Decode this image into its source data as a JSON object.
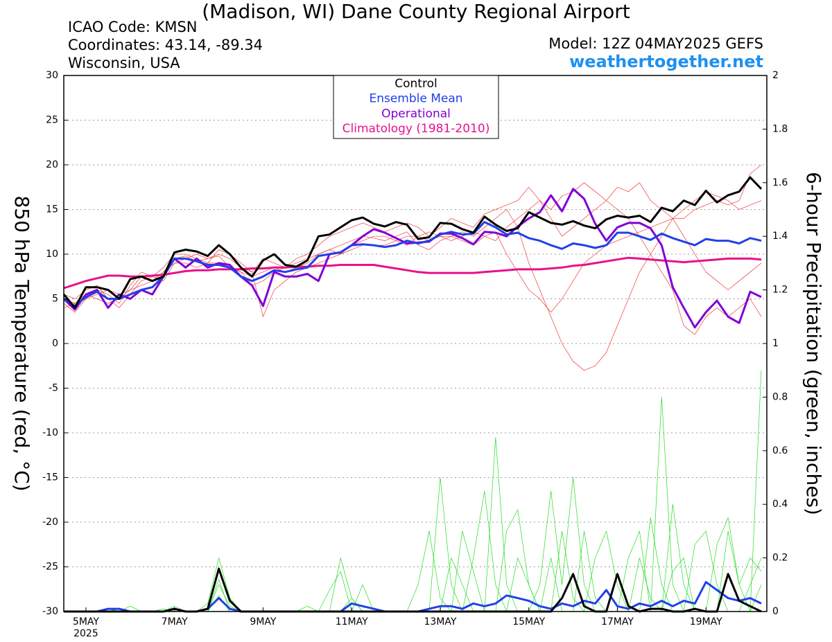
{
  "chart_data": {
    "type": "line",
    "title": "(Madison, WI) Dane County Regional Airport",
    "info_lines": [
      "ICAO Code: KMSN",
      "Coordinates: 43.14, -89.34",
      "Wisconsin, USA"
    ],
    "model": "Model: 12Z 04MAY2025 GEFS",
    "source": "weathertogether.net",
    "ylabel": "850 hPa Temperature (red, °C)",
    "y2label": "6-hour Precipitation (green, inches)",
    "year_label": "2025",
    "grid": true,
    "legend": "top-center",
    "x": [
      0,
      6,
      12,
      18,
      24,
      30,
      36,
      42,
      48,
      54,
      60,
      66,
      72,
      78,
      84,
      90,
      96,
      102,
      108,
      114,
      120,
      126,
      132,
      138,
      144,
      150,
      156,
      162,
      168,
      174,
      180,
      186,
      192,
      198,
      204,
      210,
      216,
      222,
      228,
      234,
      240,
      246,
      252,
      258,
      264,
      270,
      276,
      282,
      288,
      294,
      300,
      306,
      312,
      318,
      324,
      330,
      336,
      342,
      348,
      354,
      360,
      366,
      372,
      378
    ],
    "xlim": [
      0,
      381
    ],
    "xticks": [
      {
        "value": 12,
        "label": "5MAY"
      },
      {
        "value": 60,
        "label": "7MAY"
      },
      {
        "value": 108,
        "label": "9MAY"
      },
      {
        "value": 156,
        "label": "11MAY"
      },
      {
        "value": 204,
        "label": "13MAY"
      },
      {
        "value": 252,
        "label": "15MAY"
      },
      {
        "value": 300,
        "label": "17MAY"
      },
      {
        "value": 348,
        "label": "19MAY"
      }
    ],
    "ylim": [
      -30,
      30
    ],
    "yticks": [
      -30,
      -25,
      -20,
      -15,
      -10,
      -5,
      0,
      5,
      10,
      15,
      20,
      25,
      30
    ],
    "y2lim": [
      0,
      2
    ],
    "y2ticks": [
      0,
      0.2,
      0.4,
      0.6,
      0.8,
      1,
      1.2,
      1.4,
      1.6,
      1.8,
      2
    ],
    "series": [
      {
        "color": "#f03838",
        "linewidth": 0.7,
        "values": [
          5,
          4.5,
          5.5,
          5,
          4.5,
          5,
          6,
          7.5,
          7,
          8,
          9.5,
          9.8,
          9.2,
          9.5,
          9.8,
          8.5,
          8,
          6.5,
          7,
          8,
          8.5,
          9,
          9.5,
          10,
          10.5,
          11,
          11.5,
          12,
          11.8,
          11.5,
          12,
          12.5,
          11,
          10.5,
          11.5,
          12,
          12.5,
          12,
          13,
          14,
          15,
          13,
          9,
          6,
          3,
          0,
          -2,
          -3,
          -2.5,
          -1,
          2,
          5,
          8,
          10,
          12,
          14,
          15,
          16,
          17,
          16.5,
          16,
          15,
          15.5,
          16
        ]
      },
      {
        "color": "#f03838",
        "linewidth": 0.7,
        "values": [
          4.5,
          3.5,
          5,
          6,
          5.5,
          4.5,
          6.5,
          8,
          7.5,
          8.5,
          10,
          10,
          9.5,
          9,
          10.5,
          10,
          9,
          8,
          9.5,
          9,
          8.5,
          9.5,
          10,
          11,
          12,
          12.5,
          13,
          13.5,
          13,
          12.5,
          13,
          13.5,
          13,
          12,
          13,
          14,
          13.5,
          13,
          14.5,
          15,
          15.5,
          16,
          17.5,
          16,
          15,
          16.5,
          17,
          18,
          17,
          16,
          17.5,
          17,
          18,
          16,
          15,
          14,
          12,
          10,
          8,
          7,
          6,
          7,
          8,
          9
        ]
      },
      {
        "color": "#f03838",
        "linewidth": 0.7,
        "values": [
          5.5,
          5,
          6,
          6.5,
          5,
          4,
          5.5,
          7,
          7.5,
          7,
          9,
          9.5,
          10,
          9.5,
          10,
          9.5,
          8.5,
          8,
          3,
          6,
          7,
          8,
          8.5,
          9,
          9.5,
          10,
          11,
          11.5,
          12,
          12,
          11.5,
          11,
          12,
          12.5,
          12,
          11.5,
          12,
          12.5,
          12,
          11.5,
          13,
          14,
          15,
          16,
          14,
          12,
          13,
          14,
          15,
          16,
          15,
          14,
          12,
          10,
          8,
          6,
          2,
          1,
          3,
          4,
          3,
          4,
          5,
          3
        ]
      },
      {
        "color": "#f03838",
        "linewidth": 0.7,
        "values": [
          4,
          4.5,
          5,
          5.5,
          6,
          5.5,
          6,
          6.5,
          7,
          8,
          9,
          9,
          8.5,
          9,
          9,
          8.5,
          8,
          7.5,
          8,
          8.5,
          8,
          8.5,
          9,
          10,
          10.5,
          10,
          10.5,
          11,
          11,
          11,
          11.5,
          12,
          12,
          11.5,
          12,
          12,
          11.5,
          11,
          12,
          12.5,
          10,
          8,
          6,
          5,
          3.5,
          5,
          7,
          9,
          10,
          11,
          11.5,
          12,
          12.5,
          13,
          13.5,
          14,
          14,
          15,
          15.5,
          16,
          15.5,
          16,
          19,
          20
        ]
      },
      {
        "color": "#22dd22",
        "linewidth": 0.7,
        "axis": "y2",
        "values": [
          0,
          0,
          0,
          0,
          0,
          0,
          0,
          0,
          0,
          0.01,
          0,
          0,
          0,
          0,
          0.1,
          0.02,
          0,
          0,
          0,
          0,
          0,
          0,
          0,
          0,
          0,
          0.2,
          0.05,
          0,
          0,
          0,
          0,
          0,
          0,
          0,
          0.5,
          0.1,
          0,
          0,
          0,
          0.65,
          0.1,
          0,
          0,
          0,
          0,
          0.3,
          0.05,
          0,
          0,
          0,
          0,
          0,
          0,
          0,
          0.8,
          0.1,
          0,
          0,
          0,
          0,
          0,
          0,
          0,
          0.9
        ]
      },
      {
        "color": "#22dd22",
        "linewidth": 0.7,
        "axis": "y2",
        "values": [
          0,
          0,
          0,
          0,
          0.01,
          0,
          0,
          0,
          0,
          0,
          0,
          0,
          0,
          0.03,
          0.2,
          0.05,
          0,
          0,
          0,
          0,
          0,
          0,
          0,
          0,
          0.08,
          0.15,
          0,
          0,
          0,
          0,
          0,
          0,
          0.1,
          0.3,
          0.05,
          0,
          0,
          0.2,
          0.45,
          0.1,
          0,
          0,
          0,
          0.1,
          0.45,
          0.1,
          0.5,
          0.1,
          0,
          0,
          0,
          0,
          0.2,
          0.05,
          0,
          0.4,
          0.1,
          0,
          0,
          0,
          0.3,
          0.1,
          0.2,
          0.15
        ]
      },
      {
        "color": "#22dd22",
        "linewidth": 0.7,
        "axis": "y2",
        "values": [
          0,
          0,
          0,
          0,
          0,
          0.01,
          0,
          0,
          0,
          0,
          0.02,
          0,
          0,
          0,
          0.06,
          0,
          0,
          0,
          0,
          0,
          0,
          0,
          0.02,
          0,
          0,
          0,
          0,
          0.1,
          0,
          0,
          0,
          0,
          0,
          0,
          0,
          0.2,
          0.1,
          0,
          0,
          0,
          0.3,
          0.38,
          0.1,
          0,
          0,
          0,
          0,
          0,
          0.2,
          0.3,
          0.1,
          0,
          0,
          0.35,
          0.1,
          0,
          0,
          0.25,
          0.3,
          0.1,
          0,
          0,
          0.1,
          0.2
        ]
      },
      {
        "color": "#22dd22",
        "linewidth": 0.7,
        "axis": "y2",
        "values": [
          0,
          0,
          0,
          0,
          0,
          0,
          0.02,
          0,
          0,
          0,
          0,
          0,
          0,
          0,
          0.12,
          0,
          0,
          0,
          0,
          0,
          0,
          0,
          0,
          0,
          0,
          0,
          0.05,
          0,
          0,
          0,
          0,
          0,
          0,
          0,
          0,
          0,
          0.3,
          0.15,
          0,
          0,
          0,
          0.2,
          0.1,
          0,
          0.2,
          0,
          0,
          0.3,
          0.05,
          0,
          0,
          0.2,
          0.3,
          0,
          0,
          0.15,
          0.2,
          0,
          0,
          0.25,
          0.35,
          0.1,
          0,
          0.1
        ]
      },
      {
        "color": "#2040e8",
        "linewidth": 3,
        "axis": "y2",
        "values": [
          0,
          0,
          0,
          0,
          0.01,
          0.01,
          0,
          0,
          0,
          0,
          0.01,
          0,
          0,
          0.01,
          0.05,
          0.01,
          0,
          0,
          0,
          0,
          0,
          0,
          0,
          0,
          0,
          0,
          0.03,
          0.02,
          0.01,
          0,
          0,
          0,
          0,
          0.01,
          0.02,
          0.02,
          0.01,
          0.03,
          0.02,
          0.03,
          0.06,
          0.05,
          0.04,
          0.02,
          0.01,
          0.03,
          0.02,
          0.04,
          0.03,
          0.08,
          0.02,
          0.01,
          0.03,
          0.02,
          0.04,
          0.02,
          0.04,
          0.03,
          0.11,
          0.08,
          0.05,
          0.04,
          0.05,
          0.03
        ]
      },
      {
        "color": "#000000",
        "linewidth": 3,
        "axis": "y2",
        "values": [
          0,
          0,
          0,
          0,
          0,
          0,
          0,
          0,
          0,
          0,
          0.01,
          0,
          0,
          0.01,
          0.16,
          0.04,
          0,
          0,
          0,
          0,
          0,
          0,
          0,
          0,
          0,
          0,
          0,
          0,
          0,
          0,
          0,
          0,
          0,
          0,
          0,
          0,
          0,
          0,
          0,
          0,
          0,
          0,
          0,
          0,
          0,
          0.05,
          0.14,
          0.02,
          0,
          0,
          0.14,
          0.02,
          0,
          0.01,
          0.01,
          0,
          0,
          0.01,
          0,
          0,
          0.14,
          0.04,
          0.02,
          0
        ]
      },
      {
        "name": "Climatology (1981-2010)",
        "color": "#e8108a",
        "linewidth": 3,
        "values": [
          6.2,
          6.6,
          7,
          7.3,
          7.6,
          7.6,
          7.5,
          7.5,
          7.6,
          7.7,
          7.9,
          8.1,
          8.2,
          8.2,
          8.3,
          8.3,
          8.3,
          8.4,
          8.4,
          8.5,
          8.5,
          8.6,
          8.6,
          8.7,
          8.7,
          8.8,
          8.8,
          8.8,
          8.8,
          8.6,
          8.4,
          8.2,
          8,
          7.9,
          7.9,
          7.9,
          7.9,
          7.9,
          8,
          8.1,
          8.2,
          8.3,
          8.3,
          8.3,
          8.4,
          8.5,
          8.7,
          8.8,
          9,
          9.2,
          9.4,
          9.6,
          9.5,
          9.4,
          9.3,
          9.2,
          9.1,
          9.2,
          9.3,
          9.4,
          9.5,
          9.5,
          9.5,
          9.4
        ]
      },
      {
        "name": "Operational",
        "color": "#8000d4",
        "linewidth": 3,
        "values": [
          5,
          3.8,
          5.5,
          6,
          4,
          5.5,
          5,
          6,
          5.5,
          7.5,
          9.5,
          8.5,
          9.5,
          8.5,
          9,
          8.8,
          7.5,
          6.5,
          4.2,
          8,
          7.5,
          7.5,
          7.8,
          7,
          10,
          10.2,
          11,
          12,
          12.8,
          12.4,
          11.8,
          11.2,
          11.3,
          11.4,
          12.3,
          12.3,
          11.8,
          11.1,
          12.5,
          12.4,
          12,
          13.1,
          14,
          14.7,
          16.6,
          14.8,
          17.3,
          16.2,
          13.4,
          11.5,
          13,
          13.5,
          13.5,
          12.9,
          11,
          6.3,
          4,
          1.8,
          3.5,
          4.8,
          3,
          2.3,
          5.8,
          5.2
        ]
      },
      {
        "name": "Ensemble Mean",
        "color": "#2040e8",
        "linewidth": 3,
        "values": [
          5,
          4.2,
          5.2,
          5.8,
          5,
          5,
          5.5,
          6,
          6.3,
          7.5,
          9.5,
          9.5,
          9.2,
          8.8,
          8.8,
          8.5,
          7.5,
          7,
          7.5,
          8.2,
          8,
          8.3,
          8.5,
          9.8,
          10,
          10.2,
          11,
          11.1,
          11,
          10.8,
          11,
          11.5,
          11.2,
          11.5,
          12.2,
          12.5,
          12.2,
          12.3,
          13.6,
          13,
          12.2,
          12.4,
          11.8,
          11.5,
          11,
          10.6,
          11.2,
          11,
          10.7,
          11,
          12.4,
          12.4,
          12,
          11.6,
          12.3,
          11.8,
          11.4,
          11,
          11.7,
          11.5,
          11.5,
          11.2,
          11.8,
          11.5
        ]
      },
      {
        "name": "Control",
        "color": "#000000",
        "linewidth": 3,
        "values": [
          5.5,
          4,
          6.3,
          6.3,
          6,
          5,
          7.2,
          7.5,
          7,
          7.5,
          10.2,
          10.5,
          10.3,
          9.8,
          11,
          10,
          8.5,
          7.5,
          9.3,
          10,
          8.8,
          8.6,
          9.3,
          12,
          12.2,
          13,
          13.8,
          14.1,
          13.4,
          13.1,
          13.6,
          13.3,
          11.7,
          11.9,
          13.5,
          13.4,
          12.8,
          12.4,
          14.2,
          13.3,
          12.6,
          12.9,
          14.7,
          14.1,
          13.5,
          13.3,
          13.7,
          13.2,
          12.9,
          13.9,
          14.3,
          14.1,
          14.3,
          13.6,
          15.2,
          14.8,
          16,
          15.5,
          17.1,
          15.8,
          16.6,
          17,
          18.6,
          17.3
        ]
      }
    ]
  }
}
